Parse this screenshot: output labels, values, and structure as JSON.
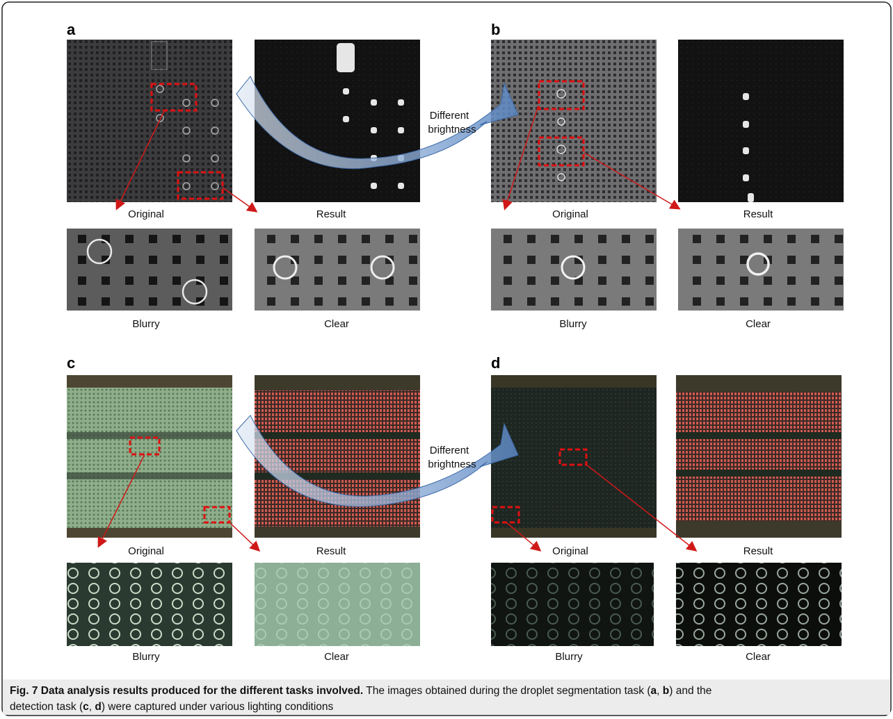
{
  "panels": [
    {
      "label": "a",
      "original": "Original",
      "result": "Result",
      "blurry": "Blurry",
      "clear": "Clear"
    },
    {
      "label": "b",
      "original": "Original",
      "result": "Result",
      "blurry": "Blurry",
      "clear": "Clear"
    },
    {
      "label": "c",
      "original": "Original",
      "result": "Result",
      "blurry": "Blurry",
      "clear": "Clear"
    },
    {
      "label": "d",
      "original": "Original",
      "result": "Result",
      "blurry": "Blurry",
      "clear": "Clear"
    }
  ],
  "arrow_label": [
    "Different",
    "brightness"
  ],
  "caption": {
    "title": "Fig. 7 Data analysis results produced for the different tasks involved.",
    "parts": [
      "The images obtained during the droplet segmentation task (",
      "a",
      ", ",
      "b",
      ") and the",
      "detection task (",
      "c",
      ", ",
      "d",
      ") were captured under various lighting conditions"
    ]
  }
}
